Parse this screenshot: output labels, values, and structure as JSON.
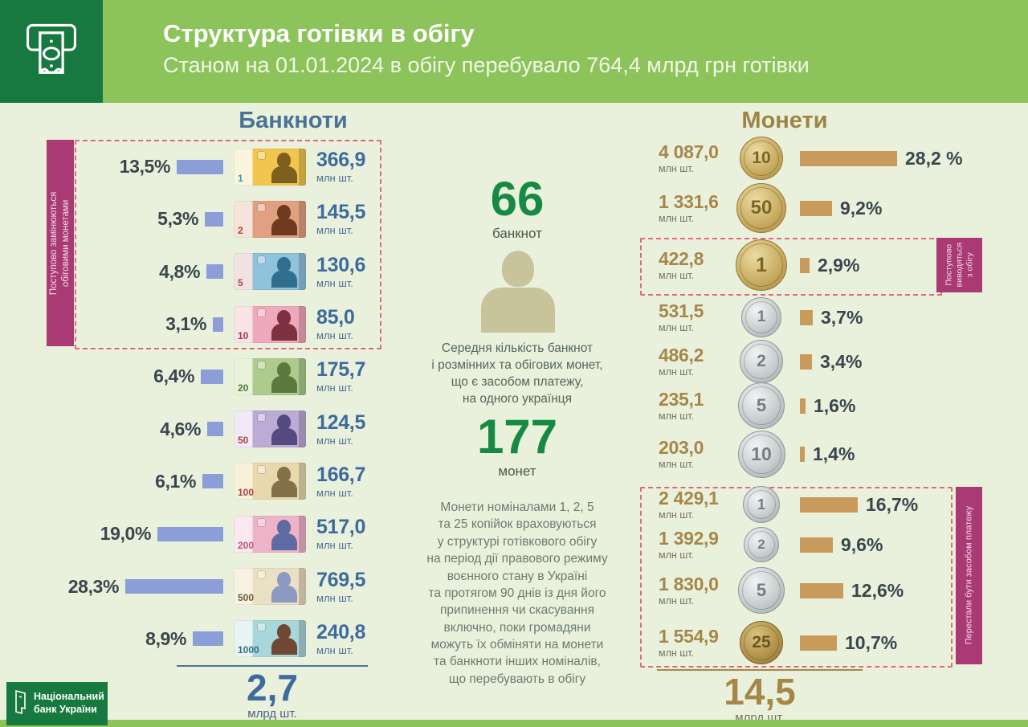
{
  "header": {
    "title": "Структура готівки в обігу",
    "subtitle": "Станом на 01.01.2024 в обігу перебувало 764,4 млрд грн готівки"
  },
  "banknotes": {
    "heading": "Банкноти",
    "unit": "млн шт.",
    "flag_label": "Поступово замінюються\nобіговими монетами",
    "rows": [
      {
        "denomination": "1",
        "percent_label": "13,5%",
        "pct": 13.5,
        "count": "366,9",
        "colors": {
          "base": "#F1C64F",
          "pale": "#FBF4DE",
          "silhouette": "#7D5F1F",
          "num": "#2D9FAE"
        }
      },
      {
        "denomination": "2",
        "percent_label": "5,3%",
        "pct": 5.3,
        "count": "145,5",
        "colors": {
          "base": "#E0A183",
          "pale": "#F6E3DC",
          "silhouette": "#6F3A1E",
          "num": "#A2472F"
        }
      },
      {
        "denomination": "5",
        "percent_label": "4,8%",
        "pct": 4.8,
        "count": "130,6",
        "colors": {
          "base": "#8FC2DB",
          "pale": "#F3E2E4",
          "silhouette": "#2F6E8C",
          "num": "#B04A50"
        }
      },
      {
        "denomination": "10",
        "percent_label": "3,1%",
        "pct": 3.1,
        "count": "85,0",
        "colors": {
          "base": "#EFA9BC",
          "pale": "#F9E3E6",
          "silhouette": "#7C3040",
          "num": "#A33B52"
        }
      },
      {
        "denomination": "20",
        "percent_label": "6,4%",
        "pct": 6.4,
        "count": "175,7",
        "colors": {
          "base": "#AECB8E",
          "pale": "#EAF2DA",
          "silhouette": "#5C7A3E",
          "num": "#4E7A3A"
        }
      },
      {
        "denomination": "50",
        "percent_label": "4,6%",
        "pct": 4.6,
        "count": "124,5",
        "colors": {
          "base": "#BCABD6",
          "pale": "#EFEAF5",
          "silhouette": "#544A80",
          "num": "#B04343"
        }
      },
      {
        "denomination": "100",
        "percent_label": "6,1%",
        "pct": 6.1,
        "count": "166,7",
        "colors": {
          "base": "#E7D9AC",
          "pale": "#F7F1DC",
          "silhouette": "#83714A",
          "num": "#B04343"
        }
      },
      {
        "denomination": "200",
        "percent_label": "19,0%",
        "pct": 19.0,
        "count": "517,0",
        "colors": {
          "base": "#EFB3C8",
          "pale": "#F9E8EE",
          "silhouette": "#5E6CA3",
          "num": "#C2526B"
        }
      },
      {
        "denomination": "500",
        "percent_label": "28,3%",
        "pct": 28.3,
        "count": "769,5",
        "colors": {
          "base": "#EBDFC4",
          "pale": "#F8F2E4",
          "silhouette": "#8C9AC2",
          "num": "#6E5A3A"
        }
      },
      {
        "denomination": "1000",
        "percent_label": "8,9%",
        "pct": 8.9,
        "count": "240,8",
        "colors": {
          "base": "#A9D6DA",
          "pale": "#E8F4F4",
          "silhouette": "#6E4834",
          "num": "#2E6E7E"
        }
      }
    ],
    "total": {
      "value": "2,7",
      "unit": "млрд шт."
    }
  },
  "center": {
    "banknotes_count": "66",
    "banknotes_label": "банкнот",
    "caption": "Середня кількість банкнот\nі розмінних та обігових монет,\nщо є засобом платежу,\nна одного українця",
    "coins_count": "177",
    "coins_label": "монет",
    "footnote": "Монети  номіналами 1, 2, 5\nта 25 копійок враховуються\nу  структурі готівкового обігу\nна період дії правового режиму\nвоєнного стану в Україні\nта протягом 90 днів із дня його\nприпинення чи скасування\nвключно, поки громадяни\nможуть їх обміняти на монети\nта банкноти інших номіналів,\nщо перебувають в  обігу"
  },
  "coins": {
    "heading": "Монети",
    "unit": "млн шт.",
    "withdrawn_label": "Поступово\nвиводяться\nз обігу",
    "stopped_label": "Перестали бути засобом  платежу",
    "rows": [
      {
        "denomination": "10",
        "style": "gold",
        "count": "4 087,0",
        "percent_label": "28,2 %",
        "pct": 28.2
      },
      {
        "denomination": "50",
        "style": "gold",
        "count": "1 331,6",
        "percent_label": "9,2%",
        "pct": 9.2
      },
      {
        "denomination": "1",
        "style": "gold",
        "count": "422,8",
        "percent_label": "2,9%",
        "pct": 2.9
      },
      {
        "denomination": "1",
        "style": "silver",
        "count": "531,5",
        "percent_label": "3,7%",
        "pct": 3.7
      },
      {
        "denomination": "2",
        "style": "silver",
        "count": "486,2",
        "percent_label": "3,4%",
        "pct": 3.4
      },
      {
        "denomination": "5",
        "style": "silver",
        "count": "235,1",
        "percent_label": "1,6%",
        "pct": 1.6
      },
      {
        "denomination": "10",
        "style": "silver",
        "count": "203,0",
        "percent_label": "1,4%",
        "pct": 1.4
      },
      {
        "denomination": "1",
        "style": "silver",
        "count": "2 429,1",
        "percent_label": "16,7%",
        "pct": 16.7
      },
      {
        "denomination": "2",
        "style": "silver",
        "count": "1 392,9",
        "percent_label": "9,6%",
        "pct": 9.6
      },
      {
        "denomination": "5",
        "style": "silver",
        "count": "1 830,0",
        "percent_label": "12,6%",
        "pct": 12.6
      },
      {
        "denomination": "25",
        "style": "gold-dark",
        "count": "1 554,9",
        "percent_label": "10,7%",
        "pct": 10.7
      }
    ],
    "total": {
      "value": "14,5",
      "unit": "млрд шт."
    }
  },
  "footer": {
    "logo_line1": "Національний",
    "logo_line2": "банк України"
  },
  "colors": {
    "accent_green_dark": "#17793F",
    "accent_green_light": "#8CC35B",
    "bar_blue": "#8C9ED8",
    "bar_gold": "#C89B5C",
    "magenta": "#A93A74",
    "dashed_pink": "#E06A7D",
    "value_blue": "#3E6B9E",
    "value_gold": "#A5874A",
    "big_number_green": "#168A45"
  },
  "chart_data": [
    {
      "type": "bar",
      "title": "Банкноти",
      "categories": [
        "1 грн",
        "2 грн",
        "5 грн",
        "10 грн",
        "20 грн",
        "50 грн",
        "100 грн",
        "200 грн",
        "500 грн",
        "1000 грн"
      ],
      "series": [
        {
          "name": "частка, %",
          "values": [
            13.5,
            5.3,
            4.8,
            3.1,
            6.4,
            4.6,
            6.1,
            19.0,
            28.3,
            8.9
          ]
        },
        {
          "name": "кількість, млн шт.",
          "values": [
            366.9,
            145.5,
            130.6,
            85.0,
            175.7,
            124.5,
            166.7,
            517.0,
            769.5,
            240.8
          ]
        }
      ],
      "total": {
        "value": 2.7,
        "unit": "млрд шт."
      },
      "annotations": [
        "Банкноти 1, 2, 5, 10 грн поступово замінюються обіговими монетами",
        "66 банкнот на одного українця"
      ],
      "legend_position": "none",
      "grid": false
    },
    {
      "type": "bar",
      "title": "Монети",
      "categories": [
        "10 коп",
        "50 коп",
        "1 грн (стара)",
        "1 грн",
        "2 грн",
        "5 грн",
        "10 грн",
        "1 коп",
        "2 коп",
        "5 коп",
        "25 коп"
      ],
      "series": [
        {
          "name": "частка, %",
          "values": [
            28.2,
            9.2,
            2.9,
            3.7,
            3.4,
            1.6,
            1.4,
            16.7,
            9.6,
            12.6,
            10.7
          ]
        },
        {
          "name": "кількість, млн шт.",
          "values": [
            4087.0,
            1331.6,
            422.8,
            531.5,
            486.2,
            235.1,
            203.0,
            2429.1,
            1392.9,
            1830.0,
            1554.9
          ]
        }
      ],
      "total": {
        "value": 14.5,
        "unit": "млрд шт."
      },
      "annotations": [
        "1 грн (стара) поступово виводяться з обігу",
        "1, 2, 5, 25 коп перестали бути засобом платежу",
        "177 монет на одного українця"
      ],
      "legend_position": "none",
      "grid": false
    }
  ]
}
